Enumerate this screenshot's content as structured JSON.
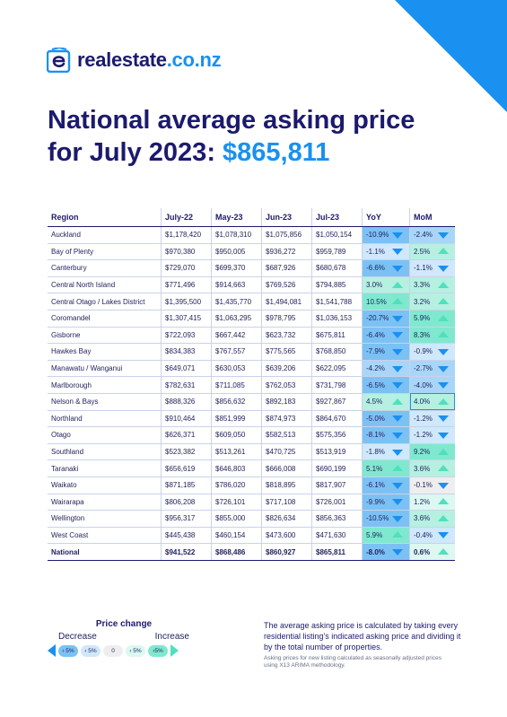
{
  "brand": {
    "name": "realestate",
    "tld": ".co.nz"
  },
  "title": {
    "line1": "National average asking price",
    "line2_prefix": "for July 2023: ",
    "price": "$865,811"
  },
  "colors": {
    "accent": "#1a90f0",
    "navy": "#1c1a6e",
    "increase": "#4fe0bc"
  },
  "table": {
    "headers": [
      "Region",
      "July-22",
      "May-23",
      "Jun-23",
      "Jul-23",
      "YoY",
      "MoM"
    ],
    "rows": [
      [
        "Auckland",
        "$1,178,420",
        "$1,078,310",
        "$1,075,856",
        "$1,050,154",
        "-10.9%",
        "-2.4%"
      ],
      [
        "Bay of Plenty",
        "$970,380",
        "$950,005",
        "$936,272",
        "$959,789",
        "-1.1%",
        "2.5%"
      ],
      [
        "Canterbury",
        "$729,070",
        "$699,370",
        "$687,926",
        "$680,678",
        "-6.6%",
        "-1.1%"
      ],
      [
        "Central North Island",
        "$771,496",
        "$914,663",
        "$769,526",
        "$794,885",
        "3.0%",
        "3.3%"
      ],
      [
        "Central Otago / Lakes District",
        "$1,395,500",
        "$1,435,770",
        "$1,494,081",
        "$1,541,788",
        "10.5%",
        "3.2%"
      ],
      [
        "Coromandel",
        "$1,307,415",
        "$1,063,295",
        "$978,795",
        "$1,036,153",
        "-20.7%",
        "5.9%"
      ],
      [
        "Gisborne",
        "$722,093",
        "$667,442",
        "$623,732",
        "$675,811",
        "-6.4%",
        "8.3%"
      ],
      [
        "Hawkes Bay",
        "$834,383",
        "$767,557",
        "$775,565",
        "$768,850",
        "-7.9%",
        "-0.9%"
      ],
      [
        "Manawatu / Wanganui",
        "$649,071",
        "$630,053",
        "$639,206",
        "$622,095",
        "-4.2%",
        "-2.7%"
      ],
      [
        "Marlborough",
        "$782,631",
        "$711,085",
        "$762,053",
        "$731,798",
        "-6.5%",
        "-4.0%"
      ],
      [
        "Nelson & Bays",
        "$888,326",
        "$856,632",
        "$892,183",
        "$927,867",
        "4.5%",
        "4.0%"
      ],
      [
        "Northland",
        "$910,464",
        "$851,999",
        "$874,973",
        "$864,670",
        "-5.0%",
        "-1.2%"
      ],
      [
        "Otago",
        "$626,371",
        "$609,050",
        "$582,513",
        "$575,356",
        "-8.1%",
        "-1.2%"
      ],
      [
        "Southland",
        "$523,382",
        "$513,261",
        "$470,725",
        "$513,919",
        "-1.8%",
        "9.2%"
      ],
      [
        "Taranaki",
        "$656,619",
        "$646,803",
        "$666,008",
        "$690,199",
        "5.1%",
        "3.6%"
      ],
      [
        "Waikato",
        "$871,185",
        "$786,020",
        "$818,895",
        "$817,907",
        "-6.1%",
        "-0.1%"
      ],
      [
        "Wairarapa",
        "$806,208",
        "$726,101",
        "$717,108",
        "$726,001",
        "-9.9%",
        "1.2%"
      ],
      [
        "Wellington",
        "$956,317",
        "$855,000",
        "$826,634",
        "$856,363",
        "-10.5%",
        "3.6%"
      ],
      [
        "West Coast",
        "$445,438",
        "$460,154",
        "$473,600",
        "$471,630",
        "5.9%",
        "-0.4%"
      ],
      [
        "National",
        "$941,522",
        "$868,486",
        "$860,927",
        "$865,811",
        "-8.0%",
        "0.6%"
      ]
    ]
  },
  "legend": {
    "title": "Price change",
    "decrease": "Decrease",
    "increase": "Increase",
    "chips": [
      "› 5%",
      "‹ 5%",
      "0",
      "‹ 5%",
      "›5%"
    ]
  },
  "note": "The average asking price is calculated by taking every residential listing's indicated asking price and dividing it by the total number of properties.",
  "footnote": "Asking prices for new listing calculated as seasonally adjusted prices using X13 ARIMA methodology."
}
